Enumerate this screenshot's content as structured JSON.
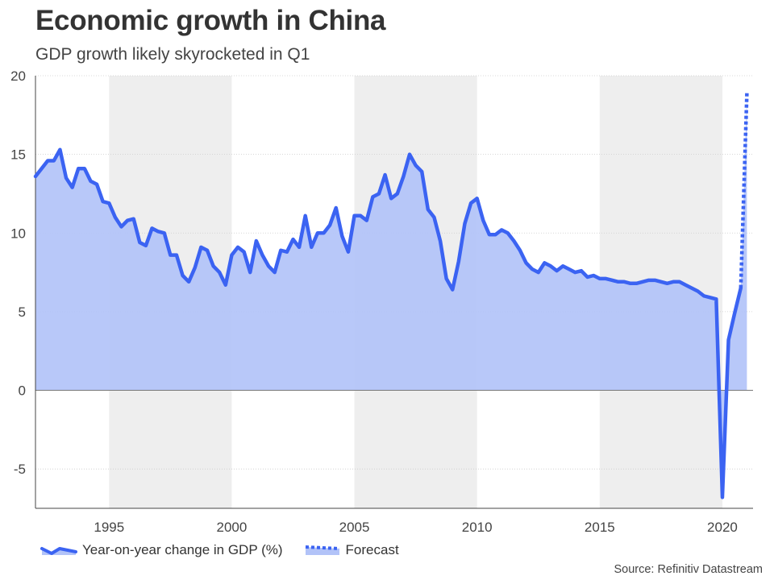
{
  "title": "Economic growth in China",
  "subtitle": "GDP growth likely skyrocketed in Q1",
  "source": "Source: Refinitiv Datastream",
  "colors": {
    "line": "#3b63f2",
    "area": "#b2c3f8",
    "band": "#eeeeee",
    "zero": "#777777",
    "grid": "#cccccc"
  },
  "chart_data": {
    "type": "area",
    "title": "Economic growth in China",
    "subtitle": "GDP growth likely skyrocketed in Q1",
    "xlabel": "",
    "ylabel": "",
    "xlim": [
      1992.0,
      2021.25
    ],
    "ylim": [
      -7.5,
      20
    ],
    "x_ticks": [
      1995,
      2000,
      2005,
      2010,
      2015,
      2020
    ],
    "x_tick_labels": [
      "1995",
      "2000",
      "2005",
      "2010",
      "2015",
      "2020"
    ],
    "y_ticks": [
      20,
      15,
      10,
      5,
      0,
      -5
    ],
    "y_tick_labels": [
      "20",
      "15",
      "10",
      "5",
      "0",
      "-5"
    ],
    "grid": "horizontal dotted",
    "shaded_periods": [
      [
        1995,
        2000
      ],
      [
        2005,
        2010
      ],
      [
        2015,
        2020
      ]
    ],
    "legend_position": "bottom-left",
    "series": [
      {
        "name": "Year-on-year change in GDP (%)",
        "style": "solid line with filled area",
        "points": [
          [
            1992.0,
            13.6
          ],
          [
            1992.25,
            14.1
          ],
          [
            1992.5,
            14.6
          ],
          [
            1992.75,
            14.6
          ],
          [
            1993.0,
            15.3
          ],
          [
            1993.25,
            13.5
          ],
          [
            1993.5,
            12.9
          ],
          [
            1993.75,
            14.1
          ],
          [
            1994.0,
            14.1
          ],
          [
            1994.25,
            13.3
          ],
          [
            1994.5,
            13.1
          ],
          [
            1994.75,
            12.0
          ],
          [
            1995.0,
            11.9
          ],
          [
            1995.25,
            11.0
          ],
          [
            1995.5,
            10.4
          ],
          [
            1995.75,
            10.8
          ],
          [
            1996.0,
            10.9
          ],
          [
            1996.25,
            9.4
          ],
          [
            1996.5,
            9.2
          ],
          [
            1996.75,
            10.3
          ],
          [
            1997.0,
            10.1
          ],
          [
            1997.25,
            10.0
          ],
          [
            1997.5,
            8.6
          ],
          [
            1997.75,
            8.6
          ],
          [
            1998.0,
            7.3
          ],
          [
            1998.25,
            6.9
          ],
          [
            1998.5,
            7.8
          ],
          [
            1998.75,
            9.1
          ],
          [
            1999.0,
            8.9
          ],
          [
            1999.25,
            7.9
          ],
          [
            1999.5,
            7.5
          ],
          [
            1999.75,
            6.7
          ],
          [
            2000.0,
            8.6
          ],
          [
            2000.25,
            9.1
          ],
          [
            2000.5,
            8.8
          ],
          [
            2000.75,
            7.5
          ],
          [
            2001.0,
            9.5
          ],
          [
            2001.25,
            8.6
          ],
          [
            2001.5,
            7.9
          ],
          [
            2001.75,
            7.5
          ],
          [
            2002.0,
            8.9
          ],
          [
            2002.25,
            8.8
          ],
          [
            2002.5,
            9.6
          ],
          [
            2002.75,
            9.1
          ],
          [
            2003.0,
            11.1
          ],
          [
            2003.25,
            9.1
          ],
          [
            2003.5,
            10.0
          ],
          [
            2003.75,
            10.0
          ],
          [
            2004.0,
            10.5
          ],
          [
            2004.25,
            11.6
          ],
          [
            2004.5,
            9.8
          ],
          [
            2004.75,
            8.8
          ],
          [
            2005.0,
            11.1
          ],
          [
            2005.25,
            11.1
          ],
          [
            2005.5,
            10.8
          ],
          [
            2005.75,
            12.3
          ],
          [
            2006.0,
            12.5
          ],
          [
            2006.25,
            13.7
          ],
          [
            2006.5,
            12.2
          ],
          [
            2006.75,
            12.5
          ],
          [
            2007.0,
            13.6
          ],
          [
            2007.25,
            15.0
          ],
          [
            2007.5,
            14.3
          ],
          [
            2007.75,
            13.9
          ],
          [
            2008.0,
            11.5
          ],
          [
            2008.25,
            11.0
          ],
          [
            2008.5,
            9.5
          ],
          [
            2008.75,
            7.1
          ],
          [
            2009.0,
            6.4
          ],
          [
            2009.25,
            8.2
          ],
          [
            2009.5,
            10.6
          ],
          [
            2009.75,
            11.9
          ],
          [
            2010.0,
            12.2
          ],
          [
            2010.25,
            10.8
          ],
          [
            2010.5,
            9.9
          ],
          [
            2010.75,
            9.9
          ],
          [
            2011.0,
            10.2
          ],
          [
            2011.25,
            10.0
          ],
          [
            2011.5,
            9.5
          ],
          [
            2011.75,
            8.9
          ],
          [
            2012.0,
            8.1
          ],
          [
            2012.25,
            7.7
          ],
          [
            2012.5,
            7.5
          ],
          [
            2012.75,
            8.1
          ],
          [
            2013.0,
            7.9
          ],
          [
            2013.25,
            7.6
          ],
          [
            2013.5,
            7.9
          ],
          [
            2013.75,
            7.7
          ],
          [
            2014.0,
            7.5
          ],
          [
            2014.25,
            7.6
          ],
          [
            2014.5,
            7.2
          ],
          [
            2014.75,
            7.3
          ],
          [
            2015.0,
            7.1
          ],
          [
            2015.25,
            7.1
          ],
          [
            2015.5,
            7.0
          ],
          [
            2015.75,
            6.9
          ],
          [
            2016.0,
            6.9
          ],
          [
            2016.25,
            6.8
          ],
          [
            2016.5,
            6.8
          ],
          [
            2016.75,
            6.9
          ],
          [
            2017.0,
            7.0
          ],
          [
            2017.25,
            7.0
          ],
          [
            2017.5,
            6.9
          ],
          [
            2017.75,
            6.8
          ],
          [
            2018.0,
            6.9
          ],
          [
            2018.25,
            6.9
          ],
          [
            2018.5,
            6.7
          ],
          [
            2018.75,
            6.5
          ],
          [
            2019.0,
            6.3
          ],
          [
            2019.25,
            6.0
          ],
          [
            2019.5,
            5.9
          ],
          [
            2019.75,
            5.8
          ],
          [
            2020.0,
            -6.8
          ],
          [
            2020.25,
            3.2
          ],
          [
            2020.5,
            4.9
          ],
          [
            2020.75,
            6.5
          ]
        ]
      },
      {
        "name": "Forecast",
        "style": "dotted line",
        "points": [
          [
            2020.75,
            6.5
          ],
          [
            2021.0,
            18.9
          ]
        ]
      }
    ]
  }
}
